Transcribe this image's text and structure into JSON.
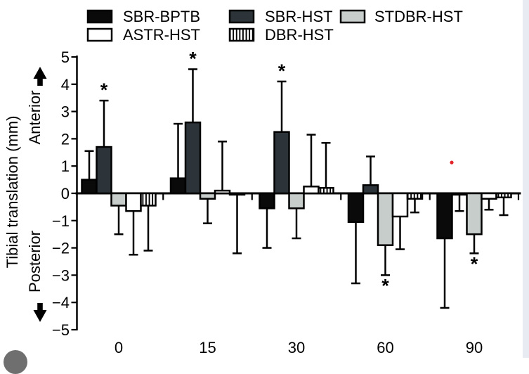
{
  "page": {
    "background": "#ffffff",
    "right_strip_color": "#e9ebf2",
    "corner_button_color": "#6f6f6f"
  },
  "chart_data": {
    "type": "bar",
    "title": "",
    "xlabel": "",
    "ylabel": "Tibial translation (mm)",
    "direction_labels": {
      "up": "Anterior",
      "down": "Posterior"
    },
    "categories": [
      "0",
      "15",
      "30",
      "60",
      "90"
    ],
    "ylim": [
      -5,
      5
    ],
    "ytick_labels": [
      "5",
      "4",
      "3",
      "2",
      "1",
      "0",
      "−1",
      "−2",
      "−3",
      "−4",
      "−5"
    ],
    "grid": false,
    "legend_position": "top",
    "legend_rows": [
      [
        "SBR-BPTB",
        "SBR-HST",
        "STDBR-HST"
      ],
      [
        "ASTR-HST",
        "DBR-HST"
      ]
    ],
    "significance_marker": "*",
    "series": [
      {
        "name": "SBR-BPTB",
        "swatch": "solid-black",
        "color": "#0a0a0a",
        "values": [
          0.5,
          0.55,
          -0.55,
          -1.05,
          -1.65
        ],
        "errors": [
          1.05,
          2.0,
          1.45,
          2.25,
          2.55
        ],
        "sig": [
          "",
          "",
          "",
          "",
          ""
        ]
      },
      {
        "name": "SBR-HST",
        "swatch": "solid-darkgray",
        "color": "#2d3439",
        "values": [
          1.7,
          2.6,
          2.25,
          0.3,
          -0.05
        ],
        "errors": [
          1.7,
          1.95,
          1.85,
          1.05,
          0.6
        ],
        "sig": [
          "*",
          "*",
          "*",
          "",
          ""
        ]
      },
      {
        "name": "STDBR-HST",
        "swatch": "solid-lightgray",
        "color": "#c7cdca",
        "values": [
          -0.45,
          -0.2,
          -0.55,
          -1.9,
          -1.5
        ],
        "errors": [
          1.05,
          0.9,
          1.1,
          1.1,
          0.7
        ],
        "sig": [
          "",
          "",
          "",
          "*",
          "*"
        ]
      },
      {
        "name": "ASTR-HST",
        "swatch": "outline-white",
        "color": "#ffffff",
        "values": [
          -0.65,
          0.1,
          0.25,
          -0.85,
          -0.2
        ],
        "errors": [
          1.6,
          1.8,
          1.9,
          1.2,
          0.4
        ],
        "sig": [
          "",
          "",
          "",
          "",
          ""
        ]
      },
      {
        "name": "DBR-HST",
        "swatch": "hatch-vertical",
        "color": "hatch",
        "values": [
          -0.45,
          -0.05,
          0.2,
          -0.2,
          -0.15
        ],
        "errors": [
          1.65,
          2.15,
          1.65,
          0.5,
          0.65
        ],
        "sig": [
          "",
          "",
          "",
          "",
          ""
        ]
      }
    ],
    "annotations": [
      {
        "type": "red-dot",
        "category": "90",
        "value": 1.13,
        "color": "#e3242b"
      }
    ]
  }
}
